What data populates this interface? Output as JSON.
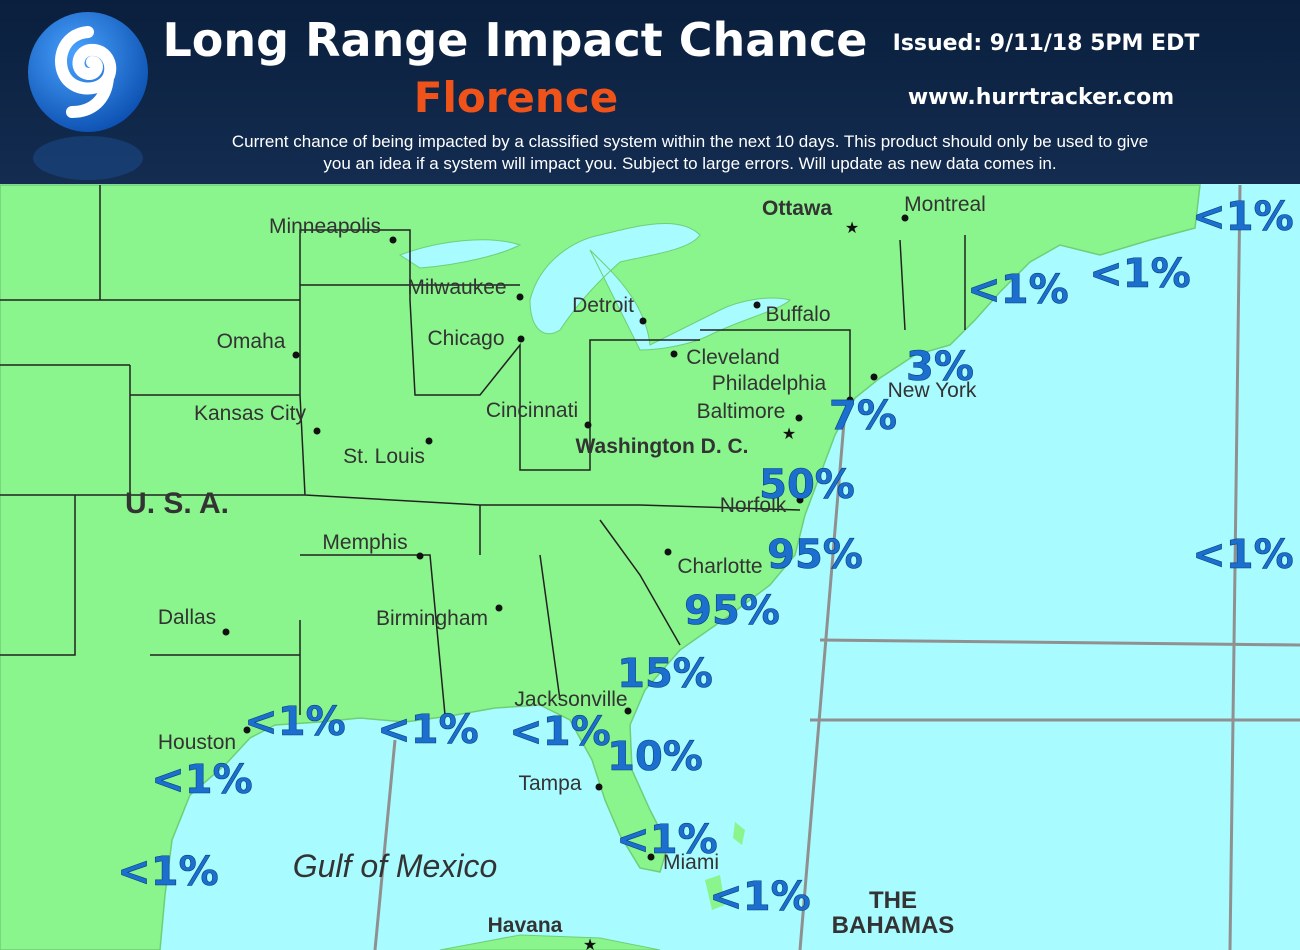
{
  "header": {
    "title": "Long Range Impact Chance",
    "storm": "Florence",
    "issued": "Issued: 9/11/18 5PM EDT",
    "website": "www.hurrtracker.com",
    "description_line1": "Current chance of being impacted by a classified system within the next 10 days. This product should only be used to give",
    "description_line2": "you an idea if a system will impact you. Subject to large errors. Will update as new data comes in."
  },
  "cities": [
    "Minneapolis",
    "Milwaukee",
    "Detroit",
    "Buffalo",
    "Ottawa",
    "Montreal",
    "Chicago",
    "Cleveland",
    "Omaha",
    "Philadelphia",
    "New York",
    "Kansas City",
    "Cincinnati",
    "Baltimore",
    "St. Louis",
    "Washington D. C.",
    "Norfolk",
    "Memphis",
    "Charlotte",
    "Dallas",
    "Birmingham",
    "Jacksonville",
    "Houston",
    "Tampa",
    "Miami",
    "Havana"
  ],
  "regions": [
    "U. S. A.",
    "Gulf of Mexico",
    "THE",
    "BAHAMAS"
  ],
  "impact_chances": [
    "<1%",
    "<1%",
    "<1%",
    "<1%",
    "3%",
    "7%",
    "50%",
    "95%",
    "95%",
    "15%",
    "10%",
    "<1%",
    "<1%",
    "<1%",
    "<1%",
    "<1%",
    "<1%",
    "<1%"
  ]
}
